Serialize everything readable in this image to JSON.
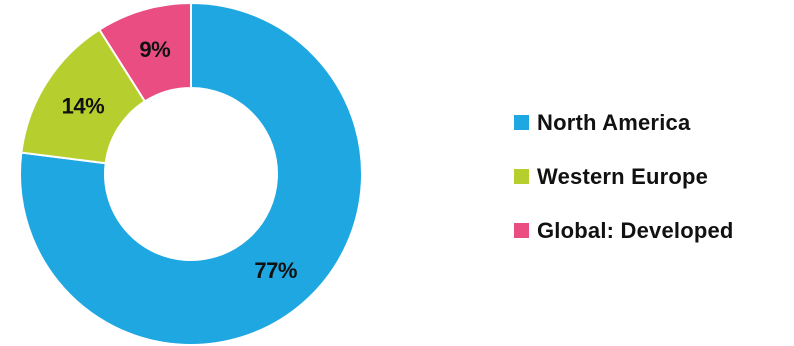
{
  "chart_data": {
    "type": "pie",
    "donut": true,
    "categories": [
      "North America",
      "Western Europe",
      "Global: Developed"
    ],
    "values": [
      77,
      14,
      9
    ],
    "value_labels": [
      "77%",
      "14%",
      "9%"
    ],
    "colors": [
      "#1ea7e1",
      "#b6cf2f",
      "#ea4d82"
    ],
    "legend_position": "right",
    "title": "",
    "legend": [
      {
        "label": "North America",
        "color": "#1ea7e1"
      },
      {
        "label": "Western Europe",
        "color": "#b6cf2f"
      },
      {
        "label": "Global: Developed",
        "color": "#ea4d82"
      }
    ]
  }
}
